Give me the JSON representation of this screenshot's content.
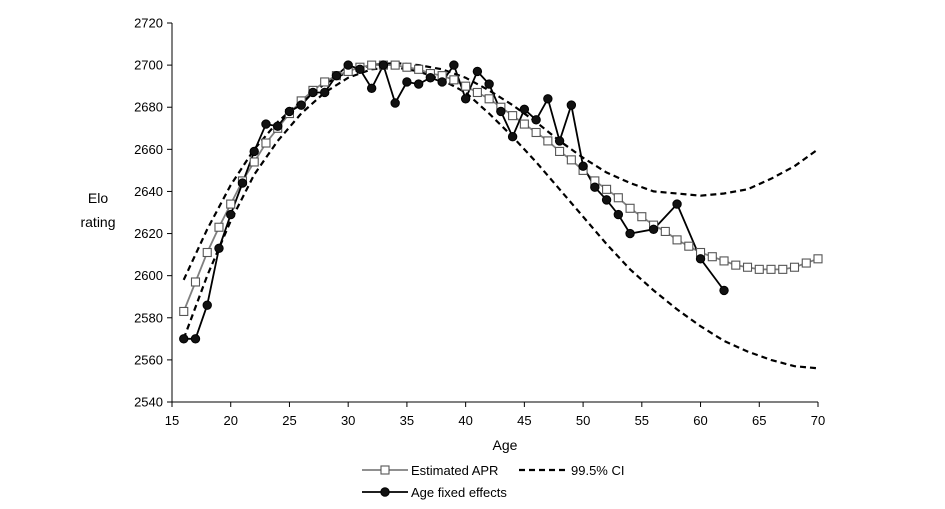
{
  "chart_data": {
    "type": "line",
    "xlabel": "Age",
    "ylabel_lines": [
      "Elo",
      "rating"
    ],
    "xlim": [
      15,
      70
    ],
    "ylim": [
      2540,
      2720
    ],
    "xticks": [
      15,
      20,
      25,
      30,
      35,
      40,
      45,
      50,
      55,
      60,
      65,
      70
    ],
    "yticks": [
      2540,
      2560,
      2580,
      2600,
      2620,
      2640,
      2660,
      2680,
      2700,
      2720
    ],
    "grid": false,
    "legend_position": "bottom",
    "series": [
      {
        "name": "Estimated APR",
        "style": "gray-line-open-square",
        "color": "#808080",
        "x": [
          16,
          17,
          18,
          19,
          20,
          21,
          22,
          23,
          24,
          25,
          26,
          27,
          28,
          29,
          30,
          31,
          32,
          33,
          34,
          35,
          36,
          37,
          38,
          39,
          40,
          41,
          42,
          43,
          44,
          45,
          46,
          47,
          48,
          49,
          50,
          51,
          52,
          53,
          54,
          55,
          56,
          57,
          58,
          59,
          60,
          61,
          62,
          63,
          64,
          65,
          66,
          67,
          68,
          69,
          70
        ],
        "y": [
          2583,
          2597,
          2611,
          2623,
          2634,
          2645,
          2654,
          2663,
          2670,
          2677,
          2683,
          2688,
          2692,
          2695,
          2697,
          2699,
          2700,
          2700,
          2700,
          2699,
          2698,
          2696,
          2695,
          2693,
          2690,
          2687,
          2684,
          2680,
          2676,
          2672,
          2668,
          2664,
          2659,
          2655,
          2650,
          2645,
          2641,
          2637,
          2632,
          2628,
          2624,
          2621,
          2617,
          2614,
          2611,
          2609,
          2607,
          2605,
          2604,
          2603,
          2603,
          2603,
          2604,
          2606,
          2608
        ]
      },
      {
        "name": "99.5% CI",
        "style": "dashed",
        "color": "#000000",
        "curves": [
          {
            "x": [
              16,
              18,
              20,
              22,
              24,
              26,
              28,
              30,
              32,
              34,
              36,
              38,
              40,
              42,
              44,
              46,
              48,
              50,
              52,
              54,
              56,
              58,
              60,
              62,
              64,
              66,
              68,
              70
            ],
            "y": [
              2598,
              2622,
              2643,
              2660,
              2673,
              2683,
              2691,
              2697,
              2700,
              2701,
              2700,
              2698,
              2694,
              2688,
              2681,
              2673,
              2664,
              2656,
              2649,
              2644,
              2640,
              2639,
              2638,
              2639,
              2641,
              2646,
              2652,
              2660
            ]
          },
          {
            "x": [
              16,
              18,
              20,
              22,
              24,
              26,
              28,
              30,
              32,
              34,
              36,
              38,
              40,
              42,
              44,
              46,
              48,
              50,
              52,
              54,
              56,
              58,
              60,
              62,
              64,
              66,
              68,
              70
            ],
            "y": [
              2570,
              2600,
              2626,
              2648,
              2664,
              2677,
              2687,
              2694,
              2698,
              2699,
              2697,
              2693,
              2687,
              2677,
              2666,
              2654,
              2641,
              2628,
              2615,
              2603,
              2593,
              2584,
              2576,
              2569,
              2564,
              2560,
              2557,
              2556
            ]
          }
        ]
      },
      {
        "name": "Age fixed effects",
        "style": "black-line-filled-circle",
        "color": "#000000",
        "x": [
          16,
          17,
          18,
          19,
          20,
          21,
          22,
          23,
          24,
          25,
          26,
          27,
          28,
          29,
          30,
          31,
          32,
          33,
          34,
          35,
          36,
          37,
          38,
          39,
          40,
          41,
          42,
          43,
          44,
          45,
          46,
          47,
          48,
          49,
          50,
          51,
          52,
          53,
          54,
          56,
          58,
          60,
          62
        ],
        "y": [
          2570,
          2570,
          2586,
          2613,
          2629,
          2644,
          2659,
          2672,
          2671,
          2678,
          2681,
          2687,
          2687,
          2695,
          2700,
          2698,
          2689,
          2700,
          2682,
          2692,
          2691,
          2694,
          2692,
          2700,
          2684,
          2697,
          2691,
          2678,
          2666,
          2679,
          2674,
          2684,
          2664,
          2681,
          2652,
          2642,
          2636,
          2629,
          2620,
          2622,
          2634,
          2608,
          2593
        ]
      }
    ]
  }
}
